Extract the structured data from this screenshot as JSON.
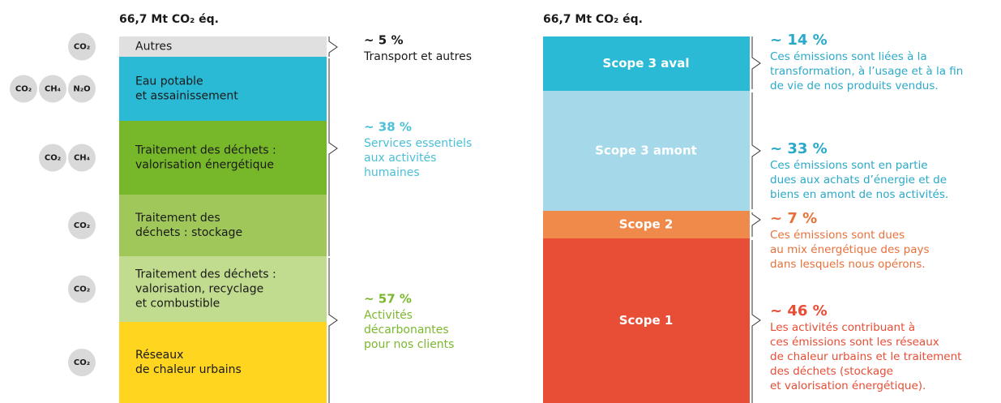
{
  "left": {
    "title": "66,7 Mt CO₂ éq.",
    "segments": [
      {
        "label": [
          "Autres"
        ],
        "gases": [
          "CO₂"
        ]
      },
      {
        "label": [
          "Eau potable",
          "et assainissement"
        ],
        "gases": [
          "CO₂",
          "CH₄",
          "N₂O"
        ]
      },
      {
        "label": [
          "Traitement des déchets :",
          "valorisation énergétique"
        ],
        "gases": [
          "CO₂",
          "CH₄"
        ]
      },
      {
        "label": [
          "Traitement des",
          "déchets : stockage"
        ],
        "gases": [
          "CO₂"
        ]
      },
      {
        "label": [
          "Traitement des déchets :",
          "valorisation, recyclage",
          "et combustible"
        ],
        "gases": [
          "CO₂"
        ]
      },
      {
        "label": [
          "Réseaux",
          "de chaleur urbains"
        ],
        "gases": [
          "CO₂"
        ]
      }
    ],
    "groups": [
      {
        "percent": "~ 5 %",
        "lines": [
          "Transport et autres"
        ]
      },
      {
        "percent": "~ 38 %",
        "lines": [
          "Services essentiels",
          "aux activités",
          "humaines"
        ]
      },
      {
        "percent": "~ 57 %",
        "lines": [
          "Activités",
          "décarbonantes",
          "pour nos clients"
        ]
      }
    ]
  },
  "right": {
    "title": "66,7 Mt CO₂ éq.",
    "segments": [
      {
        "label": "Scope 3 aval"
      },
      {
        "label": "Scope 3 amont"
      },
      {
        "label": "Scope 2"
      },
      {
        "label": "Scope 1"
      }
    ],
    "groups": [
      {
        "percent": "~ 14 %",
        "lines": [
          "Ces émissions sont liées à la",
          "transformation, à l’usage et à la fin",
          "de vie de nos produits vendus."
        ]
      },
      {
        "percent": "~ 33 %",
        "lines": [
          "Ces émissions sont en partie",
          "dues aux achats d’énergie et de",
          "biens en amont de nos activités."
        ]
      },
      {
        "percent": "~ 7 %",
        "lines": [
          "Ces émissions sont dues",
          "au mix énergétique des pays",
          "dans lesquels nous opérons."
        ]
      },
      {
        "percent": "~ 46 %",
        "lines": [
          "Les activités contribuant à",
          "ces émissions sont les réseaux",
          "de chaleur urbains et le traitement",
          "des déchets (stockage",
          "et valorisation énergétique)."
        ]
      }
    ]
  }
}
